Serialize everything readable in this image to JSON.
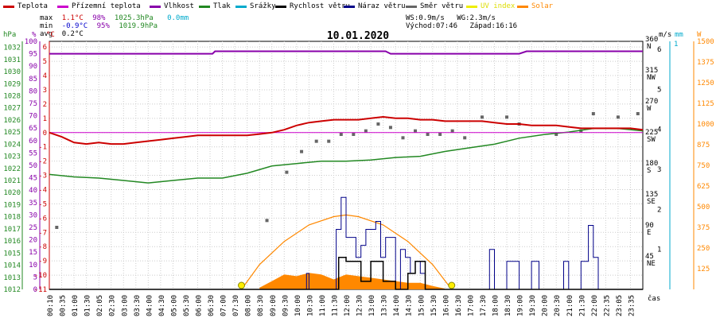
{
  "legend": [
    {
      "label": "Teplota",
      "color": "#cc0000"
    },
    {
      "label": "Přízemní teplota",
      "color": "#cc00cc"
    },
    {
      "label": "Vlhkost",
      "color": "#8800aa"
    },
    {
      "label": "Tlak",
      "color": "#228822"
    },
    {
      "label": "Srážky",
      "color": "#00aacc"
    },
    {
      "label": "Rychlost větru",
      "color": "#000000"
    },
    {
      "label": "Náraz větru",
      "color": "#000088"
    },
    {
      "label": "Směr větru",
      "color": "#666666"
    },
    {
      "label": "UV index",
      "color": "#eeee00"
    },
    {
      "label": "Solar",
      "color": "#ff8800"
    }
  ],
  "stats": {
    "max": {
      "label": "max",
      "temp": "1.1°C",
      "hum": "98%",
      "press": "1025.3hPa",
      "rain": "0.0mm"
    },
    "min": {
      "label": "min",
      "temp": "-0.9°C",
      "hum": "95%",
      "press": "1019.9hPa"
    },
    "avg": {
      "label": "avg",
      "temp": "0.2°C"
    }
  },
  "wind_info": {
    "ws": "WS:0.9m/s",
    "wg": "WG:2.3m/s",
    "sunrise": "Východ:07:46",
    "sunset": "Západ:16:16"
  },
  "date": "10.01.2020",
  "axes": {
    "hpa_title": "hPa",
    "pct_title": "%",
    "c_title": "°C",
    "ms_title": "m/s",
    "mm_title": "mm",
    "w_title": "W",
    "time_label": "čas",
    "hpa_ticks": [
      "1032",
      "1031",
      "1030",
      "1029",
      "1028",
      "1027",
      "1026",
      "1025",
      "1024",
      "1023",
      "1022",
      "1021",
      "1020",
      "1019",
      "1018",
      "1017",
      "1016",
      "1015",
      "1014",
      "1013",
      "1012"
    ],
    "pct_ticks": [
      "100",
      "95",
      "90",
      "85",
      "80",
      "75",
      "70",
      "65",
      "60",
      "55",
      "50",
      "45",
      "40",
      "35",
      "30",
      "25",
      "20",
      "15",
      "10",
      "5",
      "0"
    ],
    "c_ticks": [
      "6",
      "5",
      "4",
      "3",
      "2",
      "1",
      "0",
      "-1",
      "-2",
      "-3",
      "-4",
      "-5",
      "-6",
      "-7",
      "-8",
      "-9",
      "-10",
      "-11"
    ],
    "dir_ticks": [
      {
        "deg": "360",
        "dir": "N"
      },
      {
        "deg": "315",
        "dir": "NW"
      },
      {
        "deg": "270",
        "dir": "W"
      },
      {
        "deg": "225",
        "dir": "SW"
      },
      {
        "deg": "180",
        "dir": "S"
      },
      {
        "deg": "135",
        "dir": "SE"
      },
      {
        "deg": "90",
        "dir": "E"
      },
      {
        "deg": "45",
        "dir": "NE"
      }
    ],
    "ms_ticks": [
      "6",
      "5",
      "4",
      "3",
      "2",
      "1"
    ],
    "mm_ticks": [
      "1"
    ],
    "w_ticks": [
      "1500",
      "1375",
      "1250",
      "1125",
      "1000",
      "875",
      "750",
      "625",
      "500",
      "375",
      "250",
      "125"
    ],
    "time_ticks": [
      "00:10",
      "00:35",
      "01:00",
      "01:30",
      "02:05",
      "02:30",
      "03:00",
      "03:30",
      "04:00",
      "04:30",
      "05:00",
      "05:30",
      "06:00",
      "06:30",
      "07:00",
      "07:30",
      "08:00",
      "08:30",
      "09:00",
      "09:30",
      "10:00",
      "10:30",
      "11:00",
      "11:30",
      "12:00",
      "12:30",
      "13:00",
      "13:30",
      "14:00",
      "14:30",
      "15:00",
      "15:30",
      "16:00",
      "16:30",
      "17:00",
      "17:30",
      "18:00",
      "18:30",
      "19:00",
      "19:30",
      "20:00",
      "20:30",
      "21:00",
      "21:30",
      "22:00",
      "22:35",
      "23:05",
      "23:35"
    ]
  },
  "chart_data": {
    "type": "line",
    "title": "10.01.2020",
    "x_unit": "hours",
    "ylim_temp": [
      -11,
      6.4
    ],
    "ylim_hum": [
      0,
      100
    ],
    "ylim_press": [
      1012,
      1032.5
    ],
    "ylim_wind": [
      0,
      6.2
    ],
    "ylim_dir": [
      0,
      360
    ],
    "ylim_solar": [
      0,
      1500
    ],
    "series": [
      {
        "name": "Teplota",
        "unit": "°C",
        "x": [
          0,
          0.5,
          1,
          1.5,
          2,
          2.5,
          3,
          3.5,
          4,
          4.5,
          5,
          5.5,
          6,
          6.5,
          7,
          7.5,
          8,
          8.5,
          9,
          9.5,
          10,
          10.5,
          11,
          11.5,
          12,
          12.5,
          13,
          13.5,
          14,
          14.5,
          15,
          15.5,
          16,
          16.5,
          17,
          17.5,
          18,
          18.5,
          19,
          19.5,
          20,
          20.5,
          21,
          21.5,
          22,
          22.5,
          23,
          23.5,
          24
        ],
        "values": [
          0,
          -0.3,
          -0.7,
          -0.8,
          -0.7,
          -0.8,
          -0.8,
          -0.7,
          -0.6,
          -0.5,
          -0.4,
          -0.3,
          -0.2,
          -0.2,
          -0.2,
          -0.2,
          -0.2,
          -0.1,
          0,
          0.2,
          0.5,
          0.7,
          0.8,
          0.9,
          0.9,
          0.9,
          1.0,
          1.1,
          1.0,
          1.0,
          0.9,
          0.9,
          0.8,
          0.8,
          0.8,
          0.8,
          0.7,
          0.6,
          0.6,
          0.5,
          0.5,
          0.5,
          0.4,
          0.3,
          0.3,
          0.3,
          0.3,
          0.3,
          0.2
        ]
      },
      {
        "name": "Přízemní teplota",
        "unit": "°C",
        "x": [
          0,
          24
        ],
        "values": [
          0,
          0
        ]
      },
      {
        "name": "Vlhkost",
        "unit": "%",
        "x": [
          0,
          6.6,
          6.7,
          13.6,
          13.8,
          19.0,
          19.3,
          24
        ],
        "values": [
          95,
          95,
          96,
          96,
          95,
          95,
          96,
          96
        ]
      },
      {
        "name": "Tlak",
        "unit": "hPa",
        "x": [
          0,
          1,
          2,
          3,
          4,
          5,
          6,
          7,
          8,
          9,
          10,
          11,
          12,
          13,
          14,
          15,
          16,
          17,
          18,
          19,
          20,
          21,
          22,
          23,
          24
        ],
        "values": [
          1021.5,
          1021.3,
          1021.2,
          1021.0,
          1020.8,
          1021.0,
          1021.2,
          1021.2,
          1021.6,
          1022.2,
          1022.4,
          1022.6,
          1022.6,
          1022.7,
          1022.9,
          1023.0,
          1023.4,
          1023.7,
          1024.0,
          1024.5,
          1024.8,
          1025.0,
          1025.3,
          1025.3,
          1025.1
        ]
      },
      {
        "name": "Směr větru",
        "unit": "°",
        "x": [
          0.3,
          8.8,
          9.6,
          10.2,
          10.8,
          11.3,
          11.8,
          12.3,
          12.8,
          13.3,
          13.8,
          14.3,
          14.8,
          15.3,
          15.8,
          16.3,
          16.8,
          17.5,
          18.5,
          19.0,
          20.5,
          21.5,
          22.0,
          23.0,
          23.8
        ],
        "values": [
          90,
          100,
          170,
          200,
          215,
          215,
          225,
          225,
          230,
          240,
          235,
          220,
          230,
          225,
          225,
          230,
          220,
          250,
          250,
          240,
          225,
          230,
          255,
          250,
          255
        ]
      },
      {
        "name": "Rychlost větru",
        "unit": "m/s",
        "x": [
          0,
          11.5,
          11.7,
          12.0,
          12.3,
          12.6,
          13.0,
          13.5,
          14.0,
          14.5,
          14.8,
          15.2,
          16,
          24
        ],
        "values": [
          0,
          0,
          0.8,
          0.7,
          0.7,
          0.2,
          0.7,
          0.2,
          0,
          0.4,
          0.7,
          0,
          0,
          0
        ]
      },
      {
        "name": "Náraz větru",
        "unit": "m/s",
        "x": [
          0,
          10.3,
          10.4,
          10.5,
          11.4,
          11.6,
          11.8,
          12.0,
          12.2,
          12.4,
          12.6,
          12.8,
          13.0,
          13.2,
          13.4,
          13.6,
          14.0,
          14.2,
          14.4,
          14.6,
          14.8,
          15.0,
          15.2,
          17.5,
          17.8,
          18.0,
          18.2,
          18.5,
          18.8,
          19.0,
          19.2,
          19.5,
          19.8,
          20.5,
          20.8,
          21.0,
          21.2,
          21.5,
          21.8,
          22.0,
          22.2,
          24
        ],
        "values": [
          0,
          0,
          0.4,
          0,
          0,
          1.5,
          2.3,
          1.3,
          1.3,
          0.8,
          1.1,
          1.5,
          1.5,
          1.7,
          0.8,
          1.3,
          0,
          1.0,
          0.8,
          0.4,
          0.7,
          0.4,
          0,
          0,
          1.0,
          0,
          0,
          0.7,
          0.7,
          0,
          0,
          0.7,
          0,
          0,
          0.7,
          0,
          0,
          0.7,
          1.6,
          0.8,
          0,
          0
        ]
      },
      {
        "name": "Solar",
        "unit": "W",
        "x": [
          7.77,
          8.5,
          9.5,
          10.5,
          11.5,
          12.0,
          12.5,
          13.5,
          14.5,
          15.5,
          16.27
        ],
        "values": [
          0,
          150,
          290,
          390,
          440,
          450,
          440,
          390,
          290,
          150,
          0
        ]
      },
      {
        "name": "Solar (měřeno)",
        "unit": "W",
        "x": [
          8.5,
          9.0,
          9.5,
          10.0,
          10.5,
          11.0,
          11.5,
          12.0,
          12.5,
          13.0,
          13.5,
          14.0,
          14.5,
          15.0,
          15.5,
          16.0
        ],
        "values": [
          10,
          50,
          90,
          80,
          100,
          90,
          60,
          90,
          80,
          70,
          60,
          50,
          40,
          40,
          20,
          5
        ]
      },
      {
        "name": "Srážky",
        "unit": "mm",
        "x": [
          0,
          24
        ],
        "values": [
          0,
          0
        ]
      }
    ]
  }
}
